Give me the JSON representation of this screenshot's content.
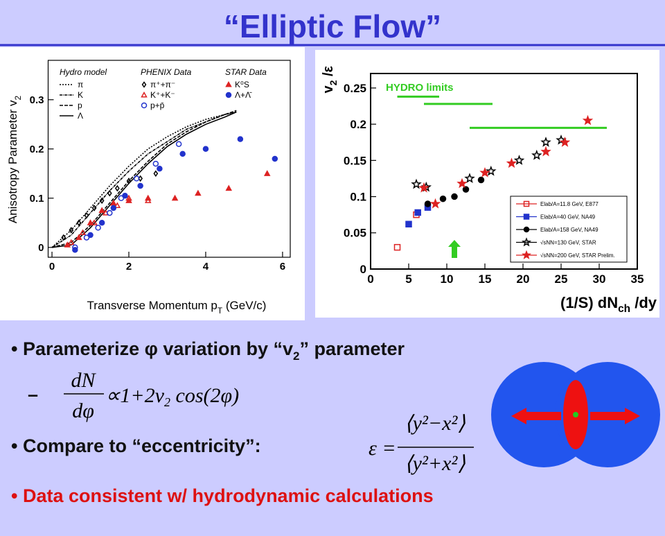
{
  "title": "“Elliptic Flow”",
  "bullets": {
    "b1": {
      "before": "Parameterize φ variation by “v",
      "sub": "2",
      "after": "” parameter"
    },
    "dash": "–",
    "f1": {
      "num": "dN",
      "den": "dφ",
      "rhs": "∝1+2v",
      "sub": "2",
      "tail": " cos(2φ)"
    },
    "b3": "Compare to “eccentricity”:",
    "f2": {
      "lhs": "ε =",
      "num": "⟨y²−x²⟩",
      "den": "⟨y²+x²⟩"
    },
    "b4": "Data consistent w/ hydrodynamic calculations"
  },
  "chart_data": [
    {
      "type": "scatter",
      "ylabel": "Anisotropy Parameter v",
      "ylabel_sub": "2",
      "xlabel": "Transverse Momentum p",
      "xlabel_sub": "T",
      "xlabel_end": " (GeV/c)",
      "xlim": [
        -0.1,
        6.2
      ],
      "ylim": [
        -0.02,
        0.38
      ],
      "xticks": [
        0,
        2,
        4,
        6
      ],
      "yticks": [
        0,
        0.1,
        0.2,
        0.3
      ],
      "groups": [
        {
          "name": "Hydro model",
          "series": [
            {
              "name": "π",
              "color": "#000000",
              "dash": "2,2",
              "x": [
                0,
                0.5,
                1,
                1.5,
                2,
                2.5,
                3,
                3.5,
                4,
                4.5,
                4.8
              ],
              "values": [
                0,
                0.035,
                0.08,
                0.125,
                0.165,
                0.2,
                0.225,
                0.245,
                0.26,
                0.27,
                0.275
              ]
            },
            {
              "name": "K",
              "color": "#000000",
              "dash": "4,1,1,1",
              "x": [
                0,
                0.5,
                1,
                1.5,
                2,
                2.5,
                3,
                3.5,
                4,
                4.5,
                4.8
              ],
              "values": [
                0,
                0.025,
                0.07,
                0.115,
                0.155,
                0.19,
                0.215,
                0.24,
                0.255,
                0.27,
                0.275
              ]
            },
            {
              "name": "p",
              "color": "#000000",
              "dash": "5,2",
              "x": [
                0,
                0.5,
                1,
                1.5,
                2,
                2.5,
                3,
                3.5,
                4,
                4.5,
                4.8
              ],
              "values": [
                0,
                0.01,
                0.045,
                0.09,
                0.135,
                0.175,
                0.21,
                0.235,
                0.255,
                0.27,
                0.278
              ]
            },
            {
              "name": "Λ",
              "color": "#000000",
              "dash": "none",
              "x": [
                0,
                0.5,
                1,
                1.5,
                2,
                2.5,
                3,
                3.5,
                4,
                4.5,
                4.8
              ],
              "values": [
                0,
                0.005,
                0.04,
                0.085,
                0.13,
                0.17,
                0.205,
                0.23,
                0.25,
                0.265,
                0.275
              ]
            }
          ]
        },
        {
          "name": "PHENIX Data",
          "series": [
            {
              "name": "π⁺+π⁻",
              "color": "#000000",
              "marker": "diamond",
              "filled": false,
              "x": [
                0.3,
                0.5,
                0.7,
                0.9,
                1.1,
                1.3,
                1.5,
                1.7,
                2.0,
                2.3,
                2.7
              ],
              "values": [
                0.02,
                0.035,
                0.05,
                0.065,
                0.08,
                0.095,
                0.11,
                0.12,
                0.135,
                0.14,
                0.15
              ]
            },
            {
              "name": "K⁺+K⁻",
              "color": "#dd2222",
              "marker": "triangle",
              "filled": false,
              "x": [
                0.5,
                0.8,
                1.1,
                1.4,
                1.7,
                2.0,
                2.5
              ],
              "values": [
                0.01,
                0.03,
                0.05,
                0.07,
                0.085,
                0.1,
                0.095
              ]
            },
            {
              "name": "p+p̄",
              "color": "#2233cc",
              "marker": "circle",
              "filled": false,
              "x": [
                0.6,
                0.9,
                1.2,
                1.5,
                1.8,
                2.2,
                2.7,
                3.3
              ],
              "values": [
                0.0,
                0.02,
                0.04,
                0.07,
                0.1,
                0.14,
                0.17,
                0.21
              ]
            }
          ]
        },
        {
          "name": "STAR Data",
          "series": [
            {
              "name": "K⁰S",
              "color": "#dd2222",
              "marker": "triangle",
              "filled": true,
              "x": [
                0.4,
                0.7,
                1.0,
                1.3,
                1.6,
                2.0,
                2.5,
                3.2,
                3.8,
                4.6,
                5.6
              ],
              "values": [
                0.005,
                0.02,
                0.05,
                0.075,
                0.09,
                0.095,
                0.1,
                0.1,
                0.11,
                0.12,
                0.15
              ]
            },
            {
              "name": "Λ+Λ̄",
              "color": "#2233cc",
              "marker": "circle",
              "filled": true,
              "x": [
                0.6,
                1.0,
                1.3,
                1.6,
                1.9,
                2.3,
                2.8,
                3.4,
                4.0,
                4.9,
                5.8
              ],
              "values": [
                -0.005,
                0.025,
                0.05,
                0.08,
                0.105,
                0.125,
                0.16,
                0.19,
                0.2,
                0.22,
                0.18
              ]
            }
          ]
        }
      ]
    },
    {
      "type": "scatter",
      "ylabel": "v",
      "ylabel_sub": "2",
      "ylabel_end": " /ε",
      "xlabel": "(1/S) dN",
      "xlabel_sub": "ch",
      "xlabel_end": " /dy",
      "xlim": [
        0,
        35
      ],
      "ylim": [
        0,
        0.27
      ],
      "xticks": [
        0,
        5,
        10,
        15,
        20,
        25,
        30,
        35
      ],
      "yticks": [
        0,
        0.05,
        0.1,
        0.15,
        0.2,
        0.25
      ],
      "annotation": "HYDRO  limits",
      "limits": [
        {
          "x": [
            3.5,
            9
          ],
          "value": 0.238
        },
        {
          "x": [
            7,
            16
          ],
          "value": 0.228
        },
        {
          "x": [
            13,
            31
          ],
          "value": 0.195
        }
      ],
      "limits_color": "#33cc22",
      "series": [
        {
          "name": "Elab/A=11.8 GeV, E877",
          "color": "#dd2222",
          "marker": "square",
          "filled": false,
          "x": [
            3.5,
            6
          ],
          "values": [
            0.03,
            0.075
          ]
        },
        {
          "name": "Elab/A=40 GeV, NA49",
          "color": "#2233cc",
          "marker": "square",
          "filled": true,
          "x": [
            5,
            6.2,
            7.5
          ],
          "values": [
            0.062,
            0.078,
            0.085
          ]
        },
        {
          "name": "Elab/A=158 GeV, NA49",
          "color": "#000000",
          "marker": "circle",
          "filled": true,
          "x": [
            7.5,
            9.5,
            11,
            12.5,
            14.5
          ],
          "values": [
            0.09,
            0.097,
            0.1,
            0.11,
            0.123
          ]
        },
        {
          "name": "√sNN=130 GeV, STAR",
          "color": "#000000",
          "marker": "star",
          "filled": false,
          "x": [
            6,
            7.3,
            13,
            15.8,
            19.5,
            21.8,
            23,
            25
          ],
          "values": [
            0.117,
            0.113,
            0.125,
            0.135,
            0.15,
            0.157,
            0.175,
            0.178
          ]
        },
        {
          "name": "√sNN=200 GeV, STAR Prelim.",
          "color": "#dd2222",
          "marker": "star",
          "filled": true,
          "x": [
            7,
            8.5,
            12,
            15,
            18.5,
            23,
            25.5,
            28.5
          ],
          "values": [
            0.112,
            0.09,
            0.118,
            0.133,
            0.146,
            0.162,
            0.175,
            0.205
          ]
        }
      ]
    }
  ]
}
